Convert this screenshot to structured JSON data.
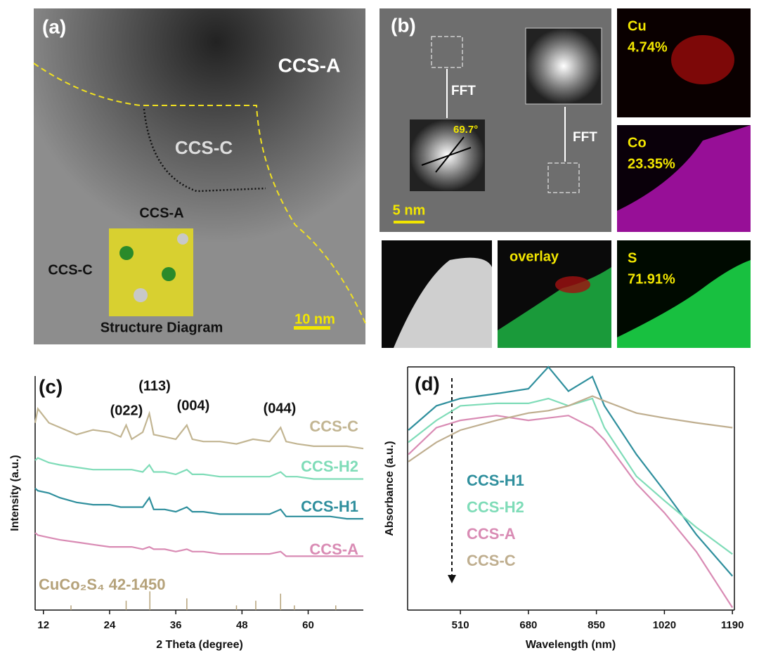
{
  "image_a": {
    "label": "(a)",
    "region_a": "CCS-A",
    "region_c": "CCS-C",
    "inset_a": "CCS-A",
    "inset_c": "CCS-C",
    "inset_caption": "Structure Diagram",
    "scale_bar": "10 nm"
  },
  "image_b": {
    "label": "(b)",
    "fft_1": "FFT",
    "fft_2": "FFT",
    "angle": "69.7°",
    "scale_bar": "5 nm",
    "overlay": "overlay",
    "maps": [
      {
        "element": "Cu",
        "percent": "4.74%"
      },
      {
        "element": "Co",
        "percent": "23.35%"
      },
      {
        "element": "S",
        "percent": "71.91%"
      }
    ]
  },
  "chart_data": [
    {
      "type": "line",
      "panel_label": "(c)",
      "xlabel": "2 Theta (degree)",
      "ylabel": "Intensity (a.u.)",
      "x": [
        10.5,
        11,
        13,
        15,
        18,
        21,
        24,
        26,
        27,
        28,
        30,
        31.2,
        32,
        34,
        36,
        38,
        39,
        41,
        44,
        47,
        50,
        53,
        55,
        56,
        58,
        61,
        64,
        67,
        70
      ],
      "xlim": [
        10.5,
        70
      ],
      "xticks": [
        12,
        24,
        36,
        48,
        60
      ],
      "ylim": [
        0,
        100
      ],
      "series": [
        {
          "name": "CCS-C",
          "color": "#c2b592",
          "values": [
            80,
            86,
            80,
            78,
            75,
            77,
            76,
            74,
            79,
            73,
            76,
            84,
            75,
            74,
            73,
            79,
            73,
            72,
            72,
            71,
            73,
            72,
            78,
            72,
            71,
            70,
            70,
            70,
            69
          ]
        },
        {
          "name": "CCS-H2",
          "color": "#7fdcb8",
          "values": [
            64,
            65,
            63,
            62,
            61,
            60,
            60,
            60,
            60,
            60,
            59,
            62,
            59,
            59,
            58,
            60,
            58,
            58,
            57,
            57,
            57,
            57,
            59,
            57,
            57,
            56,
            56,
            56,
            56
          ]
        },
        {
          "name": "CCS-H1",
          "color": "#2f8f9d",
          "values": [
            52,
            51,
            50,
            48,
            46,
            45,
            45,
            44,
            44,
            44,
            44,
            48,
            43,
            43,
            42,
            44,
            42,
            42,
            41,
            41,
            41,
            41,
            43,
            40,
            40,
            40,
            40,
            39,
            39
          ]
        },
        {
          "name": "CCS-A",
          "color": "#d98bb4",
          "values": [
            33,
            32,
            31,
            30,
            29,
            28,
            27,
            27,
            27,
            27,
            26,
            27,
            26,
            26,
            25,
            26,
            25,
            25,
            24,
            24,
            24,
            24,
            25,
            23,
            23,
            23,
            23,
            23,
            23
          ]
        }
      ],
      "reference": {
        "name": "CuCo₂S₄ 42-1450",
        "color": "#b5a27a",
        "x": [
          17,
          27,
          31.3,
          38,
          47,
          50.5,
          55,
          57.5,
          65
        ],
        "values": [
          2,
          4,
          8,
          5,
          2,
          4,
          7,
          2,
          2
        ]
      },
      "annotations": [
        "(022)",
        "(113)",
        "(004)",
        "(044)"
      ]
    },
    {
      "type": "line",
      "panel_label": "(d)",
      "xlabel": "Wavelength (nm)",
      "ylabel": "Absorbance (a.u.)",
      "x": [
        380,
        450,
        510,
        600,
        680,
        730,
        780,
        840,
        870,
        950,
        1020,
        1100,
        1190
      ],
      "xlim": [
        378,
        1195
      ],
      "xticks": [
        510,
        680,
        850,
        1020,
        1190
      ],
      "ylim": [
        0,
        100
      ],
      "series": [
        {
          "name": "CCS-H1",
          "color": "#2f8f9d",
          "values": [
            74,
            84,
            87,
            89,
            91,
            100,
            90,
            96,
            84,
            64,
            49,
            31,
            14
          ]
        },
        {
          "name": "CCS-H2",
          "color": "#7fdcb8",
          "values": [
            69,
            78,
            84,
            85,
            85,
            87,
            84,
            87,
            75,
            55,
            45,
            34,
            23
          ]
        },
        {
          "name": "CCS-A",
          "color": "#d98bb4",
          "values": [
            64,
            75,
            78,
            80,
            78,
            79,
            80,
            75,
            70,
            52,
            40,
            24,
            1
          ]
        },
        {
          "name": "CCS-C",
          "color": "#bfae8f",
          "values": [
            61,
            69,
            74,
            78,
            81,
            82,
            84,
            88,
            86,
            81,
            79,
            77,
            75
          ]
        }
      ]
    }
  ]
}
